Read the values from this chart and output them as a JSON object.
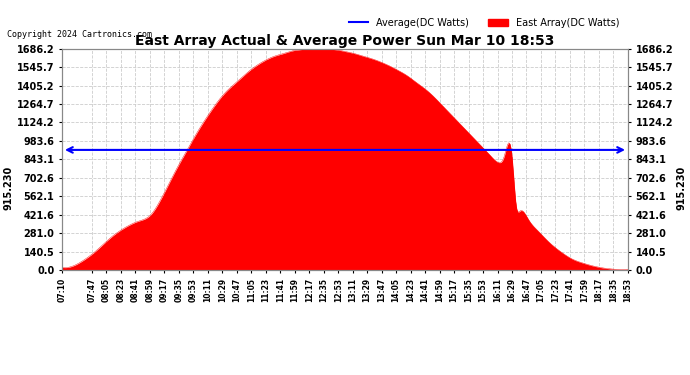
{
  "title": "East Array Actual & Average Power Sun Mar 10 18:53",
  "copyright": "Copyright 2024 Cartronics.com",
  "legend_avg": "Average(DC Watts)",
  "legend_east": "East Array(DC Watts)",
  "avg_value": 915.23,
  "y_ticks": [
    0.0,
    140.5,
    281.0,
    421.6,
    562.1,
    702.6,
    843.1,
    983.6,
    1124.2,
    1264.7,
    1405.2,
    1545.7,
    1686.2
  ],
  "ymax": 1686.2,
  "ymin": 0.0,
  "fill_color": "#ff0000",
  "avg_line_color": "#0000ff",
  "bg_color": "#ffffff",
  "grid_color": "#cccccc",
  "title_color": "#000000",
  "legend_avg_color": "#0000ff",
  "legend_east_color": "#ff0000",
  "x_labels": [
    "07:10",
    "07:47",
    "08:05",
    "08:23",
    "08:41",
    "08:59",
    "09:17",
    "09:35",
    "09:53",
    "10:11",
    "10:29",
    "10:47",
    "11:05",
    "11:23",
    "11:41",
    "11:59",
    "12:17",
    "12:35",
    "12:53",
    "13:11",
    "13:29",
    "13:47",
    "14:05",
    "14:23",
    "14:41",
    "14:59",
    "15:17",
    "15:35",
    "15:53",
    "16:11",
    "16:29",
    "16:47",
    "17:05",
    "17:23",
    "17:41",
    "17:59",
    "18:17",
    "18:35",
    "18:53"
  ],
  "curve_hours": [
    7.167,
    7.45,
    7.633,
    7.817,
    8.0,
    8.183,
    8.367,
    8.55,
    8.733,
    9.0,
    9.183,
    9.367,
    9.55,
    9.733,
    9.917,
    10.1,
    10.283,
    10.467,
    10.65,
    10.833,
    11.017,
    11.2,
    11.383,
    11.567,
    11.75,
    11.933,
    12.117,
    12.3,
    12.483,
    12.667,
    12.85,
    13.033,
    13.217,
    13.4,
    13.583,
    13.767,
    13.95,
    14.133,
    14.317,
    14.5,
    14.683,
    14.867,
    15.05,
    15.233,
    15.417,
    15.6,
    15.783,
    16.017,
    16.2,
    16.317,
    16.483,
    16.567,
    16.65,
    16.833,
    17.017,
    17.2,
    17.383,
    17.567,
    17.75,
    17.933,
    18.117,
    18.3,
    18.483,
    18.883
  ],
  "curve_values": [
    20,
    40,
    80,
    130,
    190,
    250,
    300,
    340,
    370,
    420,
    520,
    650,
    780,
    900,
    1020,
    1130,
    1230,
    1320,
    1390,
    1450,
    1510,
    1560,
    1600,
    1630,
    1650,
    1670,
    1680,
    1686,
    1686,
    1683,
    1678,
    1665,
    1650,
    1630,
    1610,
    1585,
    1555,
    1520,
    1480,
    1430,
    1380,
    1320,
    1250,
    1180,
    1110,
    1040,
    970,
    880,
    820,
    860,
    870,
    500,
    450,
    380,
    300,
    230,
    170,
    120,
    80,
    55,
    35,
    20,
    10,
    5
  ]
}
